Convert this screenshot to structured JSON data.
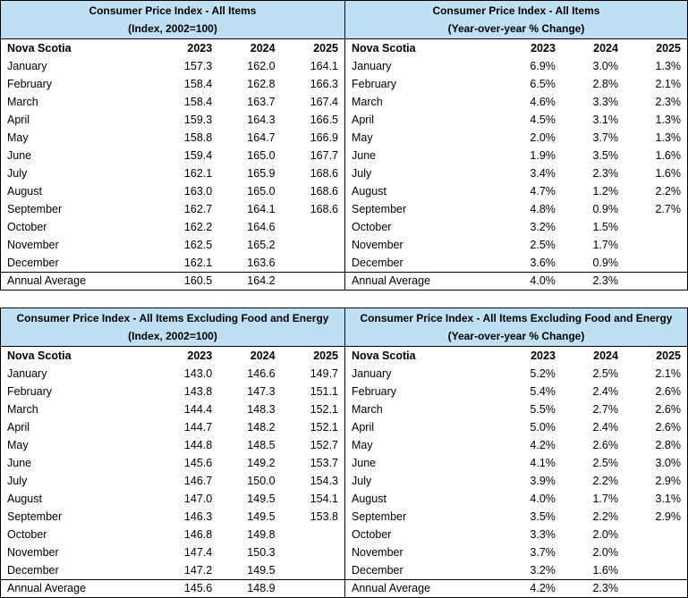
{
  "region": "Nova Scotia",
  "colors": {
    "header_fill": "#bfe0f2",
    "border": "#000000",
    "text": "#000000"
  },
  "tables": [
    {
      "id": "all-items-index",
      "title": "Consumer Price Index - All Items",
      "subtitle": "(Index, 2002=100)",
      "columns": [
        "Nova Scotia",
        "2023",
        "2024",
        "2025"
      ],
      "rows": [
        [
          "January",
          "157.3",
          "162.0",
          "164.1"
        ],
        [
          "February",
          "158.4",
          "162.8",
          "166.3"
        ],
        [
          "March",
          "158.4",
          "163.7",
          "167.4"
        ],
        [
          "April",
          "159.3",
          "164.3",
          "166.5"
        ],
        [
          "May",
          "158.8",
          "164.7",
          "166.9"
        ],
        [
          "June",
          "159.4",
          "165.0",
          "167.7"
        ],
        [
          "July",
          "162.1",
          "165.9",
          "168.6"
        ],
        [
          "August",
          "163.0",
          "165.0",
          "168.6"
        ],
        [
          "September",
          "162.7",
          "164.1",
          "168.6"
        ],
        [
          "October",
          "162.2",
          "164.6",
          ""
        ],
        [
          "November",
          "162.5",
          "165.2",
          ""
        ],
        [
          "December",
          "162.1",
          "163.6",
          ""
        ]
      ],
      "annual_average": [
        "Annual Average",
        "160.5",
        "164.2",
        ""
      ]
    },
    {
      "id": "all-items-yoy",
      "title": "Consumer Price Index - All Items",
      "subtitle": "(Year-over-year % Change)",
      "columns": [
        "Nova Scotia",
        "2023",
        "2024",
        "2025"
      ],
      "rows": [
        [
          "January",
          "6.9%",
          "3.0%",
          "1.3%"
        ],
        [
          "February",
          "6.5%",
          "2.8%",
          "2.1%"
        ],
        [
          "March",
          "4.6%",
          "3.3%",
          "2.3%"
        ],
        [
          "April",
          "4.5%",
          "3.1%",
          "1.3%"
        ],
        [
          "May",
          "2.0%",
          "3.7%",
          "1.3%"
        ],
        [
          "June",
          "1.9%",
          "3.5%",
          "1.6%"
        ],
        [
          "July",
          "3.4%",
          "2.3%",
          "1.6%"
        ],
        [
          "August",
          "4.7%",
          "1.2%",
          "2.2%"
        ],
        [
          "September",
          "4.8%",
          "0.9%",
          "2.7%"
        ],
        [
          "October",
          "3.2%",
          "1.5%",
          ""
        ],
        [
          "November",
          "2.5%",
          "1.7%",
          ""
        ],
        [
          "December",
          "3.6%",
          "0.9%",
          ""
        ]
      ],
      "annual_average": [
        "Annual Average",
        "4.0%",
        "2.3%",
        ""
      ]
    },
    {
      "id": "ex-food-energy-index",
      "title": "Consumer Price Index - All Items Excluding Food and Energy",
      "subtitle": "(Index, 2002=100)",
      "columns": [
        "Nova Scotia",
        "2023",
        "2024",
        "2025"
      ],
      "rows": [
        [
          "January",
          "143.0",
          "146.6",
          "149.7"
        ],
        [
          "February",
          "143.8",
          "147.3",
          "151.1"
        ],
        [
          "March",
          "144.4",
          "148.3",
          "152.1"
        ],
        [
          "April",
          "144.7",
          "148.2",
          "152.1"
        ],
        [
          "May",
          "144.8",
          "148.5",
          "152.7"
        ],
        [
          "June",
          "145.6",
          "149.2",
          "153.7"
        ],
        [
          "July",
          "146.7",
          "150.0",
          "154.3"
        ],
        [
          "August",
          "147.0",
          "149.5",
          "154.1"
        ],
        [
          "September",
          "146.3",
          "149.5",
          "153.8"
        ],
        [
          "October",
          "146.8",
          "149.8",
          ""
        ],
        [
          "November",
          "147.4",
          "150.3",
          ""
        ],
        [
          "December",
          "147.2",
          "149.5",
          ""
        ]
      ],
      "annual_average": [
        "Annual Average",
        "145.6",
        "148.9",
        ""
      ]
    },
    {
      "id": "ex-food-energy-yoy",
      "title": "Consumer Price Index - All Items Excluding Food and Energy",
      "subtitle": "(Year-over-year % Change)",
      "columns": [
        "Nova Scotia",
        "2023",
        "2024",
        "2025"
      ],
      "rows": [
        [
          "January",
          "5.2%",
          "2.5%",
          "2.1%"
        ],
        [
          "February",
          "5.4%",
          "2.4%",
          "2.6%"
        ],
        [
          "March",
          "5.5%",
          "2.7%",
          "2.6%"
        ],
        [
          "April",
          "5.0%",
          "2.4%",
          "2.6%"
        ],
        [
          "May",
          "4.2%",
          "2.6%",
          "2.8%"
        ],
        [
          "June",
          "4.1%",
          "2.5%",
          "3.0%"
        ],
        [
          "July",
          "3.9%",
          "2.2%",
          "2.9%"
        ],
        [
          "August",
          "4.0%",
          "1.7%",
          "3.1%"
        ],
        [
          "September",
          "3.5%",
          "2.2%",
          "2.9%"
        ],
        [
          "October",
          "3.3%",
          "2.0%",
          ""
        ],
        [
          "November",
          "3.7%",
          "2.0%",
          ""
        ],
        [
          "December",
          "3.2%",
          "1.6%",
          ""
        ]
      ],
      "annual_average": [
        "Annual Average",
        "4.2%",
        "2.3%",
        ""
      ]
    }
  ]
}
